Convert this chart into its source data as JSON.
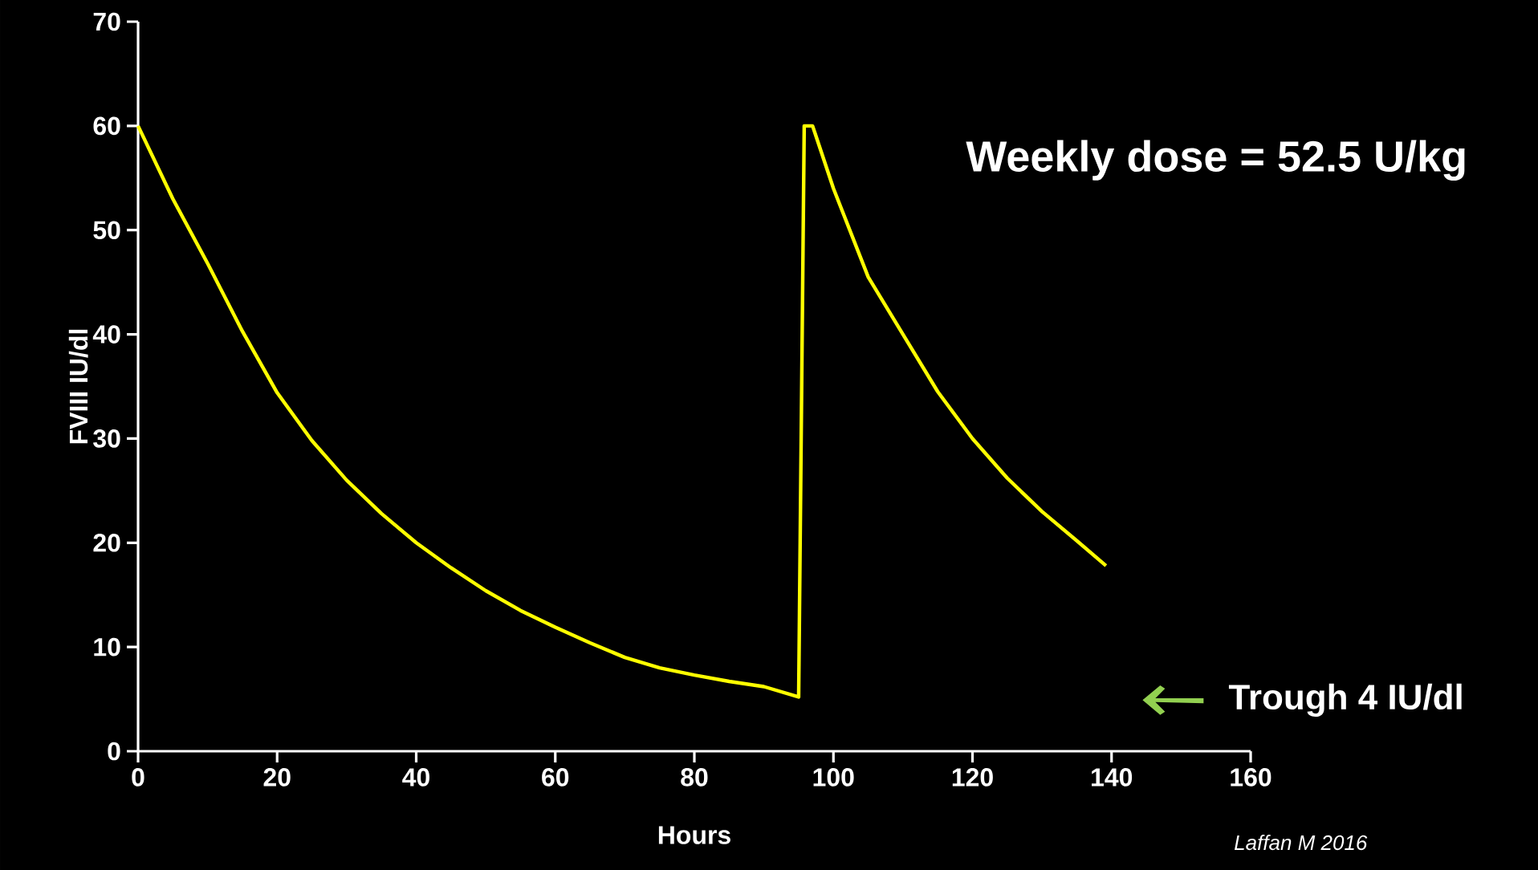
{
  "chart_data": {
    "type": "line",
    "xlabel": "Hours",
    "ylabel": "FVIII IU/dl",
    "x": [
      0,
      5,
      10,
      15,
      20,
      25,
      30,
      35,
      40,
      45,
      50,
      55,
      60,
      65,
      70,
      75,
      80,
      85,
      90,
      95,
      95.8,
      97,
      100,
      105,
      110,
      115,
      120,
      125,
      130,
      135,
      139.2
    ],
    "series": [
      {
        "color": "#ffff00",
        "values": [
          60,
          53,
          46.8,
          40.3,
          34.4,
          29.8,
          26,
          22.8,
          20,
          17.6,
          15.4,
          13.5,
          11.9,
          10.4,
          9,
          8,
          7.3,
          6.7,
          6.2,
          5.2,
          60,
          60,
          54,
          45.5,
          40,
          34.5,
          30,
          26.2,
          23,
          20.2,
          17.8
        ]
      }
    ],
    "xlim": [
      0,
      160
    ],
    "ylim": [
      0,
      70
    ],
    "xticks": [
      0,
      20,
      40,
      60,
      80,
      100,
      120,
      140,
      160
    ],
    "yticks": [
      0,
      10,
      20,
      30,
      40,
      50,
      60,
      70
    ],
    "marker": "none",
    "line_style": "solid",
    "annotations": [
      "Weekly dose = 52.5 U/kg",
      "Trough 4 IU/dl",
      "Laffan M 2016"
    ]
  }
}
